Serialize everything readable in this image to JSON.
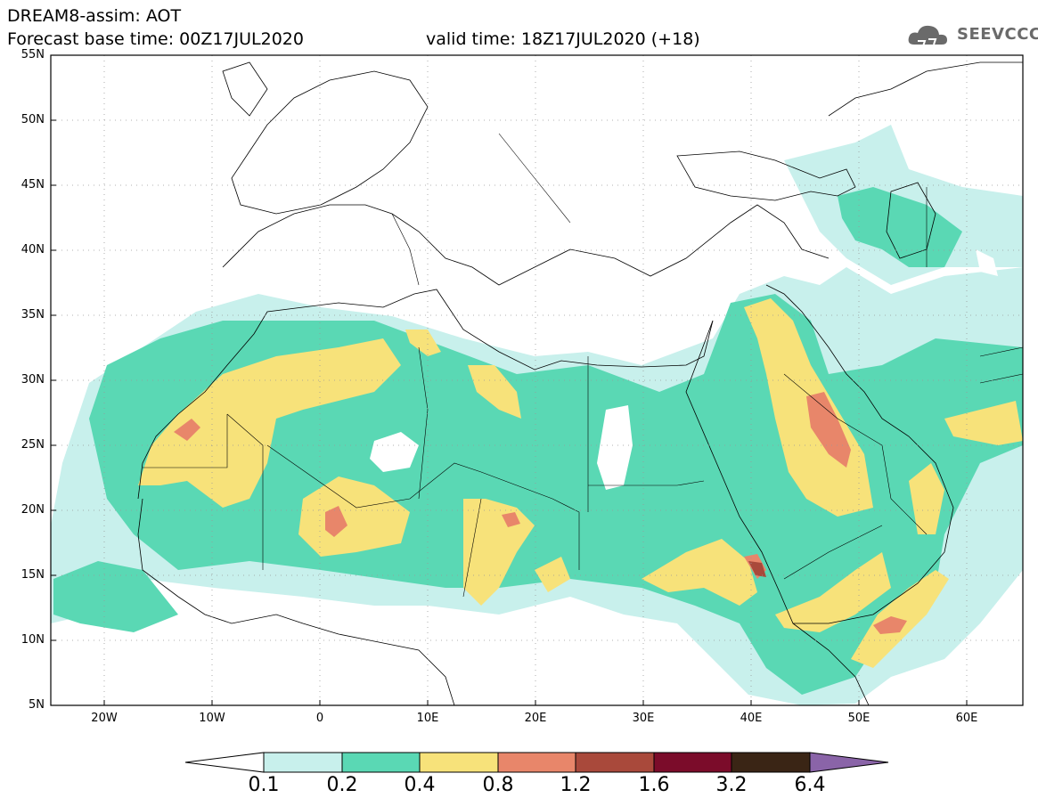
{
  "header": {
    "line1": "DREAM8-assim: AOT",
    "line2": "Forecast base time: 00Z17JUL2020",
    "valid": "valid time: 18Z17JUL2020 (+18)",
    "logo": "SEEVCCC",
    "logo_icon": "cloud-icon"
  },
  "axes": {
    "lat_labels": [
      "55N",
      "50N",
      "45N",
      "40N",
      "35N",
      "30N",
      "25N",
      "20N",
      "15N",
      "10N",
      "5N"
    ],
    "lon_labels": [
      "20W",
      "10W",
      "0",
      "10E",
      "20E",
      "30E",
      "40E",
      "50E",
      "60E"
    ]
  },
  "colorbar": {
    "labels": [
      "0.1",
      "0.2",
      "0.4",
      "0.8",
      "1.2",
      "1.6",
      "3.2",
      "6.4"
    ],
    "colors": [
      "#ffffff",
      "#c8f0ec",
      "#5ad8b4",
      "#f7e27a",
      "#e8866a",
      "#a9493b",
      "#7b0c2a",
      "#3a2515",
      "#8a64a8"
    ]
  }
}
